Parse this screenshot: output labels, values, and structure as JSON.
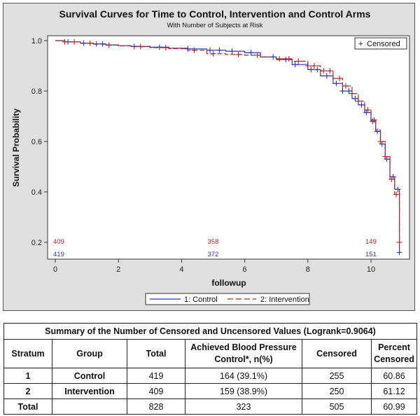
{
  "chart_data": {
    "type": "line",
    "subtype": "kaplan-meier step",
    "title": "Survival Curves for Time to Control, Intervention and Control Arms",
    "subtitle": "With Number of Subjects at Risk",
    "xlabel": "followup",
    "ylabel": "Survival Probability",
    "xlim": [
      -0.2,
      11.2
    ],
    "ylim": [
      0.17,
      1.02
    ],
    "xticks": [
      "0",
      "2",
      "4",
      "6",
      "8",
      "10"
    ],
    "yticks": [
      "0.2",
      "0.4",
      "0.6",
      "0.8",
      "1.0"
    ],
    "censored_legend": "Censored",
    "legend_position": "bottom",
    "series": [
      {
        "name": "1: Control",
        "color": "#3333bb",
        "dash": "solid",
        "x": [
          0,
          0.3,
          0.8,
          1.2,
          1.6,
          2.0,
          2.4,
          3.0,
          3.6,
          4.2,
          4.8,
          5.4,
          6.0,
          6.5,
          7.0,
          7.5,
          8.0,
          8.4,
          8.8,
          9.1,
          9.4,
          9.6,
          9.8,
          10.0,
          10.15,
          10.3,
          10.45,
          10.6,
          10.75,
          10.9
        ],
        "y": [
          1.0,
          0.995,
          0.99,
          0.987,
          0.983,
          0.98,
          0.977,
          0.974,
          0.97,
          0.967,
          0.962,
          0.958,
          0.952,
          0.935,
          0.925,
          0.905,
          0.885,
          0.86,
          0.83,
          0.8,
          0.77,
          0.745,
          0.715,
          0.68,
          0.64,
          0.59,
          0.53,
          0.46,
          0.41,
          0.34
        ],
        "censor_x": [
          0.4,
          0.9,
          1.3,
          1.5,
          2.5,
          3.3,
          4.2,
          4.9,
          5.2,
          5.6,
          6.2,
          6.9,
          7.3,
          7.6,
          8.1,
          8.3,
          8.6,
          8.9,
          9.1,
          9.3,
          9.5,
          9.7,
          9.85,
          10.05,
          10.2,
          10.35,
          10.5,
          10.7,
          10.85
        ],
        "censor_y_end": 0.16
      },
      {
        "name": "2: Intervention",
        "color": "#bb2222",
        "dash": "dashed",
        "x": [
          0,
          0.3,
          0.8,
          1.2,
          1.6,
          2.0,
          2.4,
          3.0,
          3.6,
          4.2,
          4.8,
          5.4,
          6.0,
          6.5,
          7.0,
          7.5,
          8.0,
          8.4,
          8.8,
          9.1,
          9.4,
          9.6,
          9.8,
          10.0,
          10.15,
          10.3,
          10.45,
          10.6,
          10.75,
          10.9
        ],
        "y": [
          1.0,
          0.995,
          0.99,
          0.986,
          0.982,
          0.979,
          0.976,
          0.972,
          0.968,
          0.962,
          0.948,
          0.945,
          0.942,
          0.935,
          0.928,
          0.918,
          0.9,
          0.88,
          0.85,
          0.82,
          0.79,
          0.76,
          0.725,
          0.685,
          0.645,
          0.6,
          0.54,
          0.45,
          0.39,
          0.32
        ],
        "censor_x": [
          0.3,
          0.6,
          1.1,
          1.7,
          2.7,
          3.5,
          4.4,
          5.0,
          5.8,
          6.4,
          7.1,
          7.4,
          7.7,
          8.0,
          8.2,
          8.5,
          8.7,
          9.0,
          9.2,
          9.4,
          9.6,
          9.9,
          10.1,
          10.3,
          10.45,
          10.65,
          10.8
        ],
        "censor_y_end": 0.2
      }
    ],
    "at_risk": {
      "x": [
        0,
        5,
        10
      ],
      "intervention": [
        "409",
        "358",
        "149"
      ],
      "control": [
        "419",
        "372",
        "151"
      ]
    }
  },
  "table": {
    "caption": "Summary of the Number of Censored and Uncensored Values (Logrank=0.9064)",
    "headers": [
      "Stratum",
      "Group",
      "Total",
      "Achieved Blood Pressure Control*, n(%)",
      "Censored",
      "Percent Censored"
    ],
    "rows": [
      [
        "1",
        "Control",
        "419",
        "164 (39.1%)",
        "255",
        "60.86"
      ],
      [
        "2",
        "Intervention",
        "409",
        "159 (38.9%)",
        "250",
        "61.12"
      ],
      [
        "Total",
        "",
        "828",
        "323",
        "505",
        "60.99"
      ]
    ]
  }
}
